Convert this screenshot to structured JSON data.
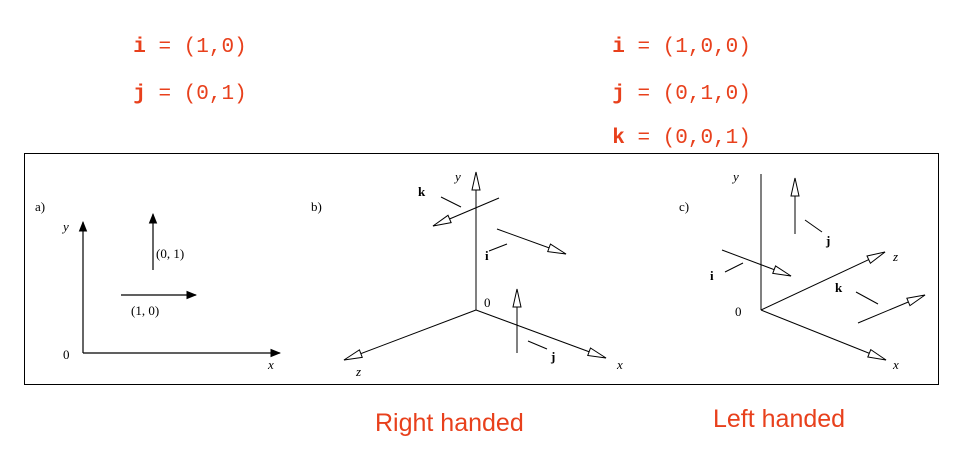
{
  "vectors_2d": [
    {
      "name": "i",
      "value": "(1,0)"
    },
    {
      "name": "j",
      "value": "(0,1)"
    }
  ],
  "vectors_3d": [
    {
      "name": "i",
      "value": "(1,0,0)"
    },
    {
      "name": "j",
      "value": "(0,1,0)"
    },
    {
      "name": "k",
      "value": "(0,0,1)"
    }
  ],
  "equals": "=",
  "panel_a": {
    "tag": "a)",
    "y": "y",
    "x": "x",
    "origin": "0",
    "vec_up": "(0, 1)",
    "vec_right": "(1, 0)"
  },
  "panel_b": {
    "tag": "b)",
    "y": "y",
    "x": "x",
    "z": "z",
    "origin": "0",
    "i": "i",
    "j": "j",
    "k": "k"
  },
  "panel_c": {
    "tag": "c)",
    "y": "y",
    "x": "x",
    "z": "z",
    "origin": "0",
    "i": "i",
    "j": "j",
    "k": "k"
  },
  "captions": {
    "right": "Right handed",
    "left": "Left handed"
  },
  "colors": {
    "accent": "#e8401c",
    "ink": "#000000"
  }
}
